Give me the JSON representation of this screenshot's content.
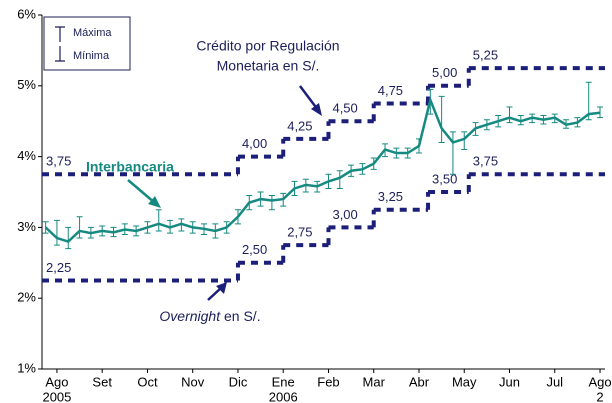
{
  "chart_data": {
    "type": "errorbar_steps",
    "xlim": [
      -0.33,
      12.11
    ],
    "ylim": [
      1,
      6
    ],
    "yticks": [
      {
        "value": 1,
        "label": "1%"
      },
      {
        "value": 2,
        "label": "2%"
      },
      {
        "value": 3,
        "label": "3%"
      },
      {
        "value": 4,
        "label": "4%"
      },
      {
        "value": 5,
        "label": "5%"
      },
      {
        "value": 6,
        "label": "6%"
      }
    ],
    "xticks": [
      {
        "value": 0,
        "label": "Ago"
      },
      {
        "value": 1,
        "label": "Set"
      },
      {
        "value": 2,
        "label": "Oct"
      },
      {
        "value": 3,
        "label": "Nov"
      },
      {
        "value": 4,
        "label": "Dic"
      },
      {
        "value": 5,
        "label": "Ene"
      },
      {
        "value": 6,
        "label": "Feb"
      },
      {
        "value": 7,
        "label": "Mar"
      },
      {
        "value": 8,
        "label": "Abr"
      },
      {
        "value": 9,
        "label": "May"
      },
      {
        "value": 10,
        "label": "Jun"
      },
      {
        "value": 11,
        "label": "Jul"
      },
      {
        "value": 12,
        "label": "Ago"
      }
    ],
    "year_labels": [
      {
        "value": 0,
        "label": "2005"
      },
      {
        "value": 5,
        "label": "2006"
      },
      {
        "value": 12,
        "label": "2"
      }
    ],
    "grid": false,
    "legend": [
      "Máxima",
      "Mínima"
    ],
    "interbank": {
      "name": "Interbancaria",
      "color": "#168a80",
      "x": [
        -0.25,
        0,
        0.25,
        0.5,
        0.75,
        1,
        1.25,
        1.5,
        1.75,
        2,
        2.25,
        2.5,
        2.75,
        3,
        3.25,
        3.5,
        3.75,
        4,
        4.25,
        4.5,
        4.75,
        5,
        5.25,
        5.5,
        5.75,
        6,
        6.25,
        6.5,
        6.75,
        7,
        7.25,
        7.5,
        7.75,
        8,
        8.25,
        8.5,
        8.75,
        9,
        9.25,
        9.5,
        9.75,
        10,
        10.25,
        10.5,
        10.75,
        11,
        11.25,
        11.5,
        11.75,
        12
      ],
      "values": [
        3.0,
        2.85,
        2.8,
        2.95,
        2.92,
        2.95,
        2.93,
        2.97,
        2.95,
        3.0,
        3.05,
        3.0,
        3.05,
        3.0,
        2.98,
        2.95,
        3.0,
        3.15,
        3.35,
        3.4,
        3.38,
        3.4,
        3.55,
        3.6,
        3.58,
        3.65,
        3.7,
        3.8,
        3.82,
        3.9,
        4.1,
        4.05,
        4.05,
        4.15,
        4.8,
        4.4,
        4.2,
        4.25,
        4.4,
        4.45,
        4.5,
        4.55,
        4.5,
        4.55,
        4.52,
        4.55,
        4.45,
        4.48,
        4.6,
        4.62
      ],
      "max": [
        3.08,
        3.1,
        3.0,
        3.15,
        3.0,
        3.02,
        3.0,
        3.05,
        3.02,
        3.08,
        3.25,
        3.1,
        3.12,
        3.08,
        3.05,
        3.05,
        3.08,
        3.25,
        3.45,
        3.5,
        3.45,
        3.48,
        3.65,
        3.68,
        3.65,
        3.75,
        3.8,
        3.88,
        3.9,
        3.98,
        4.18,
        4.12,
        4.12,
        4.25,
        4.95,
        4.85,
        4.35,
        4.35,
        4.48,
        4.52,
        4.58,
        4.7,
        4.58,
        4.6,
        4.58,
        4.6,
        4.52,
        4.55,
        5.05,
        4.7
      ],
      "min": [
        2.92,
        2.75,
        2.7,
        2.85,
        2.85,
        2.88,
        2.87,
        2.9,
        2.88,
        2.92,
        2.95,
        2.92,
        2.95,
        2.92,
        2.9,
        2.85,
        2.92,
        3.05,
        3.25,
        3.3,
        3.25,
        3.3,
        3.45,
        3.5,
        3.5,
        3.55,
        3.55,
        3.72,
        3.75,
        3.82,
        4.0,
        3.98,
        3.98,
        4.05,
        4.6,
        4.2,
        3.75,
        4.1,
        4.3,
        4.38,
        4.42,
        4.48,
        4.45,
        4.48,
        4.46,
        4.48,
        4.4,
        4.42,
        4.52,
        4.55
      ]
    },
    "steps": [
      {
        "label_lines": [
          "Crédito por Regulación",
          "Monetaria en S/."
        ],
        "color": "#1c1f7a",
        "x": [
          -0.33,
          4,
          5,
          6,
          7,
          8.2,
          9.1
        ],
        "values": [
          3.75,
          4.0,
          4.25,
          4.5,
          4.75,
          5.0,
          5.25
        ],
        "value_labels": [
          "3,75",
          "4,00",
          "4,25",
          "4,50",
          "4,75",
          "5,00",
          "5,25"
        ]
      },
      {
        "label_parts": [
          "Overnight",
          "en S/."
        ],
        "color": "#1c1f7a",
        "x": [
          -0.33,
          4,
          5,
          6,
          7,
          8.2,
          9.1
        ],
        "values": [
          2.25,
          2.5,
          2.75,
          3.0,
          3.25,
          3.5,
          3.75
        ],
        "value_labels": [
          "2,25",
          "2,50",
          "2,75",
          "3,00",
          "3,25",
          "3,50",
          "3,75"
        ]
      }
    ]
  }
}
